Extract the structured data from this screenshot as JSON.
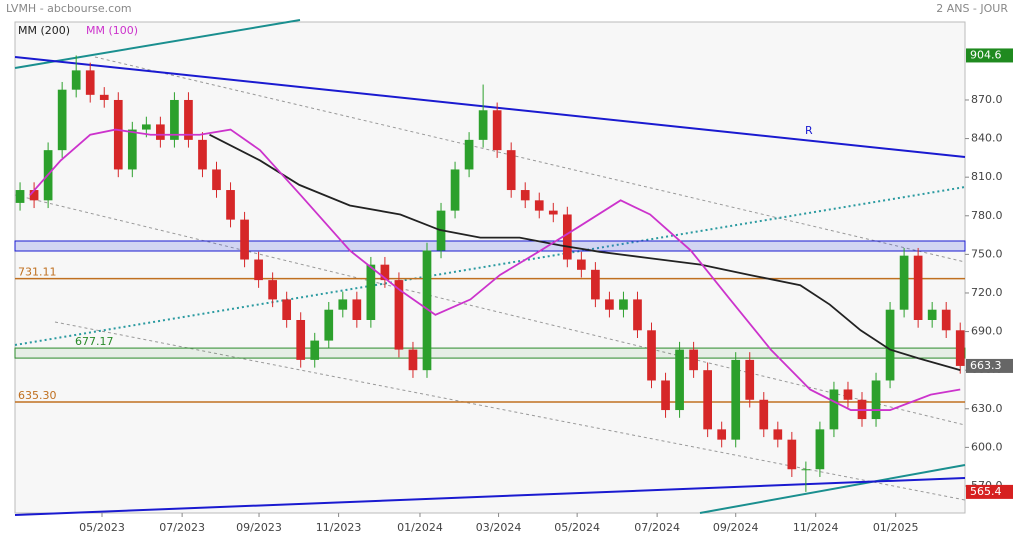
{
  "chart_data": {
    "type": "candlestick",
    "title": "LVMH - abcbourse.com",
    "subtitle": "2 ANS - JOUR",
    "up_color": "#2ca02c",
    "down_color": "#d62728",
    "open": [
      790,
      800,
      792,
      831,
      878,
      893,
      874,
      870,
      816,
      847,
      851,
      839,
      870,
      839,
      816,
      800,
      777,
      746,
      730,
      715,
      699,
      668,
      683,
      707,
      715,
      699,
      742,
      730,
      676,
      660,
      753,
      784,
      816,
      839,
      862,
      831,
      800,
      792,
      784,
      781,
      746,
      738,
      715,
      707,
      715,
      691,
      652,
      629,
      676,
      660,
      614,
      606,
      668,
      637,
      614,
      606,
      583,
      583,
      614,
      645,
      637,
      622,
      652,
      707,
      749,
      699,
      707,
      691
    ],
    "high": [
      806,
      806,
      837,
      884,
      904.6,
      899,
      880,
      876,
      853,
      857,
      857,
      876,
      876,
      845,
      822,
      806,
      783,
      752,
      736,
      721,
      705,
      689,
      713,
      721,
      721,
      748,
      748,
      736,
      682,
      759,
      790,
      822,
      845,
      882,
      868,
      837,
      806,
      798,
      790,
      787,
      752,
      744,
      721,
      721,
      721,
      697,
      658,
      682,
      682,
      666,
      620,
      674,
      674,
      643,
      620,
      612,
      589,
      620,
      651,
      651,
      643,
      658,
      713,
      755,
      755,
      713,
      713,
      697
    ],
    "low": [
      784,
      786,
      786,
      825,
      872,
      868,
      864,
      810,
      810,
      841,
      833,
      833,
      833,
      810,
      794,
      771,
      740,
      724,
      709,
      693,
      662,
      662,
      677,
      701,
      693,
      693,
      724,
      670,
      654,
      654,
      747,
      778,
      810,
      833,
      825,
      794,
      786,
      778,
      775,
      740,
      732,
      709,
      701,
      701,
      685,
      646,
      623,
      623,
      654,
      608,
      600,
      600,
      631,
      608,
      600,
      577,
      565.4,
      577,
      608,
      631,
      616,
      616,
      646,
      701,
      693,
      693,
      685,
      657.3
    ],
    "close": [
      800,
      792,
      831,
      878,
      893,
      874,
      870,
      816,
      847,
      851,
      839,
      870,
      839,
      816,
      800,
      777,
      746,
      730,
      715,
      699,
      668,
      683,
      707,
      715,
      699,
      742,
      730,
      676,
      660,
      753,
      784,
      816,
      839,
      862,
      831,
      800,
      792,
      784,
      781,
      746,
      738,
      715,
      707,
      715,
      691,
      652,
      629,
      676,
      660,
      614,
      606,
      668,
      637,
      614,
      606,
      583,
      583,
      614,
      645,
      637,
      622,
      652,
      707,
      749,
      699,
      707,
      691,
      663.3
    ],
    "series": [
      {
        "name": "MM (200)",
        "color": "#222222",
        "x": [
          13.5,
          17.1,
          19.9,
          23.5,
          27.1,
          29.9,
          32.8,
          35.6,
          38.5,
          41.3,
          44.9,
          48.5,
          52,
          55.6,
          57.7,
          59.9,
          62,
          64.1,
          67
        ],
        "values": [
          843,
          823,
          804,
          788,
          781,
          769,
          763,
          763,
          757,
          752,
          747,
          742,
          734,
          726,
          711,
          691,
          676,
          669,
          660
        ]
      },
      {
        "name": "MM (100)",
        "color": "#cc33cc",
        "x": [
          0.7,
          2.9,
          5,
          6.8,
          9.3,
          12.8,
          15,
          17.1,
          20,
          23.5,
          27.1,
          29.6,
          32.1,
          34.2,
          37.1,
          39.9,
          42.8,
          44.9,
          47.8,
          50.6,
          53.5,
          56.3,
          59.2,
          62,
          64.9,
          67
        ],
        "values": [
          796,
          823,
          843,
          847,
          843,
          843,
          847,
          831,
          796,
          753,
          722,
          703,
          715,
          734,
          753,
          772,
          792,
          781,
          753,
          715,
          676,
          645,
          629,
          629,
          641,
          645
        ]
      }
    ],
    "levels": [
      {
        "value": 731.11,
        "color": "#c07020",
        "style": "line"
      },
      {
        "value": 677.17,
        "color": "#2a8a2a",
        "style": "box"
      },
      {
        "value": {
          "value": 635.3,
          "label": "635.30"
        },
        "color": "#c07020",
        "style": "line"
      }
    ],
    "flags": [
      {
        "value": 904.6,
        "color": "#1f8a1f"
      },
      {
        "value": 663.3,
        "color": "#666666"
      },
      {
        "value": 565.4,
        "color": "#d62020"
      }
    ],
    "trendline_label": "R",
    "xlim": [
      -0.36,
      67.34
    ],
    "ylim": [
      549,
      930.6
    ],
    "yticks": [
      {
        "value": 570,
        "label": "570.0"
      },
      {
        "value": 600,
        "label": "600.0"
      },
      {
        "value": 630,
        "label": "630.0"
      },
      {
        "value": 660,
        "label": "660.0"
      },
      {
        "value": 690,
        "label": "690.0"
      },
      {
        "value": 720,
        "label": "720.0"
      },
      {
        "value": 750,
        "label": "750.0"
      },
      {
        "value": 780,
        "label": "780.0"
      },
      {
        "value": 810,
        "label": "810.0"
      },
      {
        "value": 840,
        "label": "840.0"
      },
      {
        "value": 870,
        "label": "870.0"
      }
    ],
    "xticks": [
      {
        "value": 5.84,
        "label": "05/2023"
      },
      {
        "value": 11.55,
        "label": "07/2023"
      },
      {
        "value": 17.03,
        "label": "09/2023"
      },
      {
        "value": 22.7,
        "label": "11/2023"
      },
      {
        "value": 28.5,
        "label": "01/2024"
      },
      {
        "value": 34.1,
        "label": "03/2024"
      },
      {
        "value": 39.7,
        "label": "05/2024"
      },
      {
        "value": 45.4,
        "label": "07/2024"
      },
      {
        "value": 51,
        "label": "09/2024"
      },
      {
        "value": 56.7,
        "label": "11/2024"
      },
      {
        "value": 62.4,
        "label": "01/2025"
      }
    ]
  }
}
